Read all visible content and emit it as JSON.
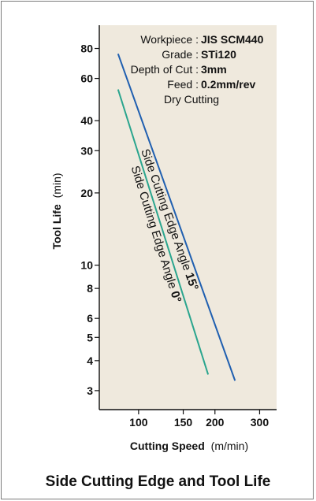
{
  "chart_data": {
    "type": "line",
    "x_scale": "log",
    "y_scale": "log",
    "xlabel": "Cutting Speed",
    "xlabel_unit": "(m/min)",
    "ylabel": "Tool Life",
    "ylabel_unit": "(min)",
    "x_ticks": [
      100,
      150,
      200,
      300
    ],
    "y_ticks": [
      3,
      4,
      5,
      6,
      8,
      10,
      20,
      30,
      40,
      60,
      80
    ],
    "xlim": [
      70,
      350
    ],
    "ylim": [
      2.5,
      100
    ],
    "series": [
      {
        "name": "Side Cutting Edge Angle 15°",
        "label_prefix": "Side Cutting Edge Angle ",
        "label_value": "15°",
        "color": "#1f5fb0",
        "x": [
          83,
          240
        ],
        "y": [
          76,
          3.3
        ]
      },
      {
        "name": "Side Cutting Edge Angle 0°",
        "label_prefix": "Side Cutting Edge Angle ",
        "label_value": "0°",
        "color": "#2aa58e",
        "x": [
          83,
          188
        ],
        "y": [
          54,
          3.5
        ]
      }
    ],
    "annotations": [
      {
        "label": "Workpiece : ",
        "value": "JIS SCM440"
      },
      {
        "label": "Grade : ",
        "value": "STi120"
      },
      {
        "label": "Depth of Cut : ",
        "value": "3mm"
      },
      {
        "label": "Feed : ",
        "value": "0.2mm/rev"
      },
      {
        "label": "Dry  Cutting",
        "value": ""
      }
    ]
  },
  "caption": "Side Cutting Edge and Tool Life",
  "colors": {
    "plot_background": "#efe9dd",
    "axis": "#111111",
    "border": "#7a7a7a"
  }
}
